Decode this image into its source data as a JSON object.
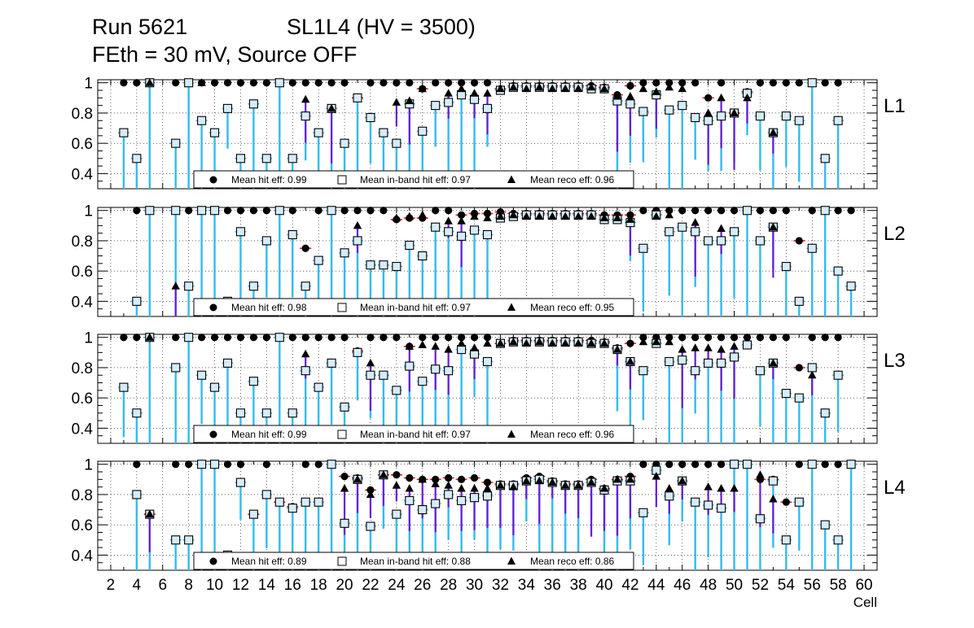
{
  "header": {
    "run": "Run 5621",
    "chamber": "SL1L4 (HV = 3500)",
    "conditions": "FEth = 30 mV, Source OFF"
  },
  "colors": {
    "hit": "#000000",
    "inband_fill": "#d6ecf8",
    "inband_err": "#33bbee",
    "reco_err": "#6a1bd6",
    "hit_err": "#dd2222"
  },
  "chart_data": {
    "type": "scatter",
    "xlabel": "Cell",
    "xlim": [
      1,
      61
    ],
    "ylim": [
      0.3,
      1.02
    ],
    "x_ticks": [
      2,
      4,
      6,
      8,
      10,
      12,
      14,
      16,
      18,
      20,
      22,
      24,
      26,
      28,
      30,
      32,
      34,
      36,
      38,
      40,
      42,
      44,
      46,
      48,
      50,
      52,
      54,
      56,
      58,
      60
    ],
    "y_ticks": [
      0.4,
      0.6,
      0.8,
      1
    ],
    "y_tick_labels": [
      "0.4",
      "0.6",
      "0.8",
      "1"
    ],
    "grid": true,
    "legend_position": "bottom-center",
    "legend_labels": {
      "hit": "Mean hit  eff: ",
      "inband": "Mean in-band hit eff: ",
      "reco": "Mean reco eff: "
    },
    "panels": [
      {
        "name": "L1",
        "mean_hit": "0.99",
        "mean_inband": "0.97",
        "mean_reco": "0.96",
        "cells": [
          3,
          4,
          5,
          7,
          8,
          9,
          10,
          11,
          12,
          13,
          14,
          15,
          16,
          17,
          18,
          19,
          20,
          21,
          22,
          23,
          24,
          25,
          26,
          27,
          28,
          29,
          30,
          31,
          32,
          33,
          34,
          35,
          36,
          37,
          38,
          39,
          40,
          41,
          42,
          43,
          44,
          45,
          46,
          47,
          48,
          49,
          50,
          51,
          52,
          53,
          54,
          55,
          56,
          57,
          58
        ],
        "hit": [
          1,
          1,
          1,
          1,
          1,
          1,
          1,
          1,
          1,
          1,
          1,
          1,
          1,
          1,
          1,
          1,
          1,
          0.9,
          1,
          1,
          1,
          1,
          0.96,
          1,
          1,
          1,
          1,
          1,
          0.96,
          0.98,
          0.98,
          0.98,
          0.98,
          0.98,
          0.98,
          0.98,
          0.97,
          0.92,
          0.98,
          1,
          1,
          1,
          1,
          1,
          0.9,
          1,
          0.8,
          0.94,
          1,
          1,
          1,
          1,
          1,
          1,
          1
        ],
        "inband": [
          0.67,
          0.5,
          1,
          0.6,
          1,
          0.75,
          0.67,
          0.83,
          0.5,
          0.86,
          0.5,
          1,
          0.5,
          0.78,
          0.67,
          0.83,
          0.6,
          0.9,
          0.77,
          0.67,
          0.6,
          0.86,
          0.68,
          0.85,
          0.87,
          0.92,
          0.89,
          0.83,
          0.95,
          0.97,
          0.97,
          0.97,
          0.97,
          0.97,
          0.97,
          0.96,
          0.96,
          0.88,
          0.86,
          0.81,
          0.92,
          0.82,
          0.85,
          0.77,
          0.75,
          0.78,
          0.8,
          0.93,
          0.78,
          0.67,
          0.78,
          0.75,
          1,
          0.5,
          0.75
        ],
        "reco": [
          null,
          null,
          1,
          null,
          null,
          1,
          null,
          null,
          null,
          null,
          null,
          null,
          null,
          0.89,
          null,
          0.83,
          null,
          null,
          null,
          null,
          0.87,
          0.88,
          0.96,
          null,
          0.93,
          0.96,
          0.93,
          0.93,
          0.96,
          0.97,
          0.96,
          0.97,
          0.96,
          0.96,
          0.96,
          0.97,
          0.96,
          0.91,
          0.91,
          0.96,
          0.94,
          0.97,
          0.96,
          null,
          0.8,
          0.9,
          0.8,
          0.9,
          null,
          0.67,
          null,
          null,
          null,
          null,
          null
        ]
      },
      {
        "name": "L2",
        "mean_hit": "0.98",
        "mean_inband": "0.97",
        "mean_reco": "0.95",
        "cells": [
          4,
          5,
          7,
          8,
          9,
          10,
          11,
          12,
          13,
          14,
          15,
          16,
          17,
          18,
          19,
          20,
          21,
          22,
          23,
          24,
          25,
          26,
          27,
          28,
          29,
          30,
          31,
          32,
          33,
          34,
          35,
          36,
          37,
          38,
          39,
          40,
          41,
          42,
          43,
          44,
          45,
          46,
          47,
          48,
          49,
          50,
          51,
          52,
          53,
          54,
          55,
          56,
          57,
          58,
          59
        ],
        "hit": [
          1,
          1,
          1,
          1,
          1,
          1,
          1,
          1,
          1,
          1,
          1,
          1,
          0.75,
          1,
          1,
          1,
          1,
          1,
          1,
          0.94,
          0.95,
          0.95,
          1,
          1,
          0.97,
          0.98,
          0.98,
          0.99,
          0.98,
          0.98,
          0.98,
          0.98,
          0.98,
          0.98,
          0.98,
          0.97,
          0.97,
          0.97,
          1,
          1,
          1,
          1,
          1,
          1,
          1,
          1,
          1,
          1,
          1,
          1,
          0.8,
          1,
          1,
          1,
          1
        ],
        "inband": [
          0.4,
          1,
          1,
          0.5,
          1,
          1,
          0.4,
          0.86,
          0.5,
          0.8,
          1,
          0.84,
          0.5,
          0.67,
          1,
          0.72,
          0.8,
          0.64,
          0.64,
          0.63,
          0.77,
          0.7,
          0.89,
          0.86,
          0.83,
          0.87,
          0.84,
          0.95,
          0.96,
          0.97,
          0.97,
          0.97,
          0.97,
          0.97,
          0.97,
          0.94,
          0.94,
          0.92,
          0.75,
          0.97,
          0.86,
          0.89,
          0.86,
          0.8,
          0.8,
          0.86,
          1,
          0.8,
          0.89,
          0.63,
          0.4,
          0.75,
          1,
          0.6,
          0.5
        ],
        "reco": [
          null,
          null,
          0.5,
          null,
          null,
          null,
          null,
          null,
          null,
          null,
          null,
          null,
          null,
          null,
          null,
          null,
          0.9,
          null,
          null,
          0.95,
          0.96,
          0.97,
          null,
          0.93,
          0.93,
          0.96,
          0.95,
          0.96,
          0.97,
          0.96,
          0.96,
          0.96,
          0.96,
          0.96,
          0.96,
          0.95,
          0.95,
          0.94,
          null,
          0.96,
          0.97,
          null,
          0.92,
          null,
          0.88,
          null,
          null,
          null,
          0.89,
          null,
          null,
          null,
          null,
          null,
          null
        ]
      },
      {
        "name": "L3",
        "mean_hit": "0.99",
        "mean_inband": "0.97",
        "mean_reco": "0.96",
        "cells": [
          3,
          4,
          5,
          7,
          8,
          9,
          10,
          11,
          12,
          13,
          14,
          15,
          16,
          17,
          18,
          19,
          20,
          21,
          22,
          23,
          24,
          25,
          26,
          27,
          28,
          29,
          30,
          31,
          32,
          33,
          34,
          35,
          36,
          37,
          38,
          39,
          40,
          41,
          42,
          43,
          44,
          45,
          46,
          47,
          48,
          49,
          50,
          51,
          52,
          53,
          54,
          55,
          56,
          57,
          58
        ],
        "hit": [
          1,
          1,
          1,
          1,
          1,
          1,
          1,
          1,
          1,
          1,
          1,
          1,
          1,
          1,
          1,
          1,
          1,
          0.91,
          1,
          1,
          1,
          0.94,
          1,
          1,
          1,
          1,
          1,
          1,
          0.96,
          0.98,
          0.98,
          0.98,
          0.98,
          0.98,
          0.98,
          0.98,
          0.97,
          0.93,
          0.96,
          1,
          1,
          1,
          1,
          1,
          1,
          1,
          1,
          1,
          1,
          1,
          1,
          0.8,
          1,
          1,
          1
        ],
        "inband": [
          0.67,
          0.5,
          1,
          0.8,
          1,
          0.75,
          0.67,
          0.83,
          0.5,
          0.71,
          0.5,
          1,
          0.5,
          0.78,
          0.67,
          0.83,
          0.54,
          0.9,
          0.75,
          0.75,
          0.65,
          0.81,
          0.71,
          0.79,
          0.78,
          0.92,
          0.89,
          0.84,
          0.96,
          0.97,
          0.97,
          0.97,
          0.97,
          0.97,
          0.97,
          0.96,
          0.96,
          0.92,
          0.84,
          0.78,
          0.96,
          0.84,
          0.85,
          0.78,
          0.83,
          0.83,
          0.87,
          0.95,
          0.78,
          0.83,
          0.63,
          0.6,
          0.8,
          0.5,
          0.75
        ],
        "reco": [
          null,
          null,
          1,
          null,
          null,
          null,
          null,
          null,
          null,
          null,
          null,
          null,
          null,
          0.89,
          null,
          null,
          null,
          null,
          0.83,
          null,
          null,
          0.94,
          0.95,
          0.94,
          0.92,
          0.96,
          0.93,
          0.96,
          0.96,
          0.97,
          0.96,
          0.97,
          0.96,
          0.96,
          0.96,
          0.96,
          0.96,
          0.92,
          0.84,
          0.97,
          0.97,
          0.97,
          0.92,
          0.93,
          0.93,
          0.92,
          0.94,
          null,
          null,
          0.83,
          null,
          null,
          0.75,
          null,
          null
        ]
      },
      {
        "name": "L4",
        "mean_hit": "0.89",
        "mean_inband": "0.88",
        "mean_reco": "0.86",
        "cells": [
          4,
          5,
          7,
          8,
          9,
          10,
          11,
          12,
          13,
          14,
          15,
          16,
          17,
          18,
          19,
          20,
          21,
          22,
          23,
          24,
          25,
          26,
          27,
          28,
          29,
          30,
          31,
          32,
          33,
          34,
          35,
          36,
          37,
          38,
          39,
          40,
          41,
          42,
          43,
          44,
          45,
          46,
          47,
          48,
          49,
          50,
          51,
          52,
          53,
          54,
          55,
          56,
          57,
          58,
          59
        ],
        "hit": [
          1,
          0.67,
          1,
          1,
          1,
          1,
          1,
          1,
          0.67,
          1,
          0.75,
          0.72,
          1,
          1,
          1,
          0.92,
          0.91,
          0.83,
          0.93,
          0.93,
          0.91,
          0.9,
          0.9,
          0.91,
          0.9,
          0.91,
          0.88,
          0.87,
          0.87,
          0.91,
          0.92,
          0.89,
          0.87,
          0.87,
          0.9,
          0.84,
          0.9,
          0.92,
          1,
          1,
          1,
          1,
          1,
          1,
          1,
          1,
          1,
          0.9,
          0.9,
          0.75,
          1,
          1,
          1,
          1,
          1
        ],
        "inband": [
          0.8,
          0.67,
          0.5,
          0.5,
          1,
          1,
          0.4,
          0.88,
          0.67,
          0.8,
          0.75,
          0.71,
          0.75,
          0.75,
          1,
          0.61,
          0.9,
          0.59,
          0.93,
          0.67,
          0.76,
          0.7,
          0.74,
          0.8,
          0.76,
          0.78,
          0.79,
          0.86,
          0.86,
          0.89,
          0.9,
          0.88,
          0.86,
          0.86,
          0.88,
          0.83,
          0.89,
          0.89,
          0.68,
          0.96,
          0.79,
          0.89,
          0.75,
          0.73,
          0.71,
          1,
          1,
          0.64,
          0.89,
          0.5,
          0.75,
          1,
          0.6,
          0.5,
          1
        ],
        "reco": [
          null,
          0.67,
          null,
          null,
          null,
          null,
          null,
          null,
          null,
          null,
          null,
          null,
          null,
          null,
          null,
          0.84,
          0.9,
          0.8,
          0.93,
          0.86,
          0.84,
          0.9,
          0.87,
          0.86,
          0.84,
          0.84,
          0.84,
          0.86,
          0.85,
          0.89,
          0.89,
          0.88,
          0.86,
          0.86,
          0.88,
          0.84,
          0.9,
          0.9,
          null,
          0.92,
          0.84,
          0.89,
          null,
          0.85,
          0.84,
          0.84,
          null,
          0.93,
          0.77,
          null,
          null,
          null,
          null,
          null,
          null
        ]
      }
    ]
  }
}
